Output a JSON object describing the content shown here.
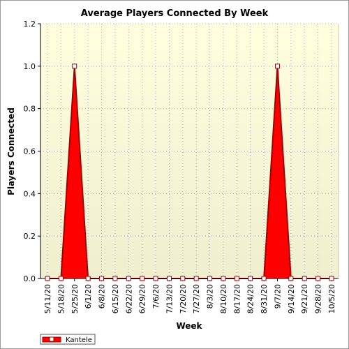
{
  "chart_data": {
    "type": "area",
    "title": "Average Players Connected By Week",
    "xlabel": "Week",
    "ylabel": "Players Connected",
    "ylim": [
      0,
      1.2
    ],
    "yticks": [
      "0.0",
      "0.2",
      "0.4",
      "0.6",
      "0.8",
      "1.0",
      "1.2"
    ],
    "categories": [
      "5/11/20",
      "5/18/20",
      "5/25/20",
      "6/1/20",
      "6/8/20",
      "6/15/20",
      "6/22/20",
      "6/29/20",
      "7/6/20",
      "7/13/20",
      "7/20/20",
      "7/27/20",
      "8/3/20",
      "8/10/20",
      "8/17/20",
      "8/24/20",
      "8/31/20",
      "9/7/20",
      "9/14/20",
      "9/21/20",
      "9/28/20",
      "10/5/20"
    ],
    "series": [
      {
        "name": "Kantele",
        "values": [
          0,
          0,
          1,
          0,
          0,
          0,
          0,
          0,
          0,
          0,
          0,
          0,
          0,
          0,
          0,
          0,
          0,
          1,
          0,
          0,
          0,
          0
        ]
      }
    ],
    "grid": true,
    "legend": "bottom-left",
    "colors": {
      "fill": "#ff0000",
      "line": "#a00000",
      "plot_bg_top": "#ffffde",
      "plot_bg_bottom": "#efefd0",
      "grid": "#b0b0b0"
    }
  }
}
